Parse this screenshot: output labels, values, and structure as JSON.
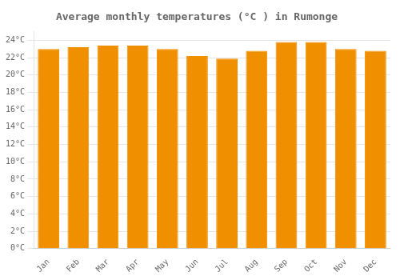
{
  "chart_data": {
    "type": "bar",
    "title": "Average monthly temperatures (°C ) in Rumonge",
    "categories": [
      "Jan",
      "Feb",
      "Mar",
      "Apr",
      "May",
      "Jun",
      "Jul",
      "Aug",
      "Sep",
      "Oct",
      "Nov",
      "Dec"
    ],
    "values": [
      23.0,
      23.2,
      23.4,
      23.4,
      23.0,
      22.2,
      21.9,
      22.8,
      23.8,
      23.8,
      23.0,
      22.8
    ],
    "color": "#F09000",
    "ylim": [
      0,
      25
    ],
    "yticks": [
      {
        "value": 0,
        "label": "0°C"
      },
      {
        "value": 2,
        "label": "2°C"
      },
      {
        "value": 4,
        "label": "4°C"
      },
      {
        "value": 6,
        "label": "6°C"
      },
      {
        "value": 8,
        "label": "8°C"
      },
      {
        "value": 10,
        "label": "10°C"
      },
      {
        "value": 12,
        "label": "12°C"
      },
      {
        "value": 14,
        "label": "14°C"
      },
      {
        "value": 16,
        "label": "16°C"
      },
      {
        "value": 18,
        "label": "18°C"
      },
      {
        "value": 20,
        "label": "20°C"
      },
      {
        "value": 22,
        "label": "22°C"
      },
      {
        "value": 24,
        "label": "24°C"
      }
    ],
    "grid": true
  }
}
